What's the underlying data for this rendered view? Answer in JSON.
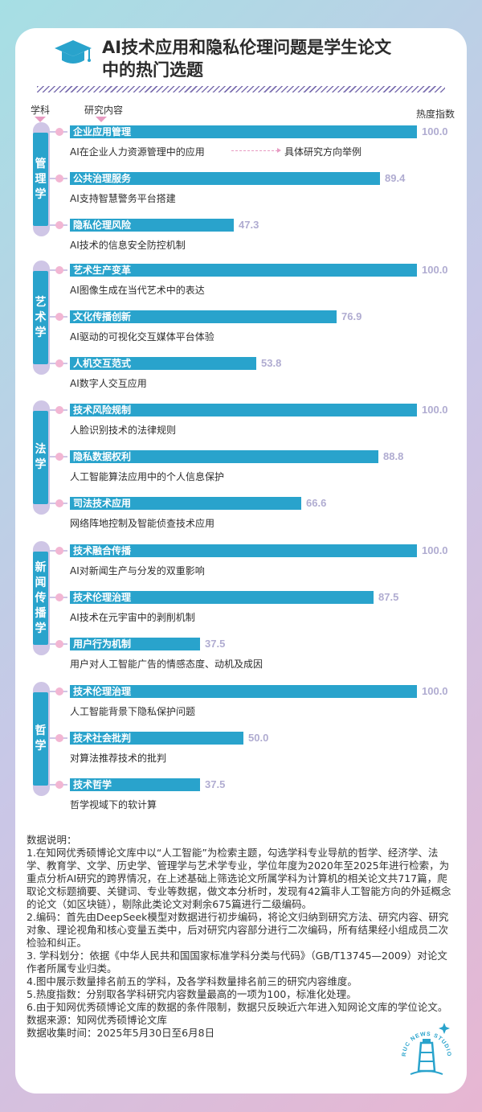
{
  "title_lines": [
    "AI技术应用和隐私伦理问题是学生论文",
    "中的热门选题"
  ],
  "headers": {
    "subject": "学科",
    "content": "研究内容",
    "heat": "热度指数"
  },
  "annotation": "具体研究方向举例",
  "chart_data": {
    "type": "bar",
    "orientation": "horizontal",
    "xlim": [
      0,
      100
    ],
    "groups": [
      {
        "subject": "管理学",
        "items": [
          {
            "topic": "企业应用管理",
            "value": 100.0,
            "value_label": "100.0",
            "example": "AI在企业人力资源管理中的应用"
          },
          {
            "topic": "公共治理服务",
            "value": 89.4,
            "value_label": "89.4",
            "example": "AI支持智慧警务平台搭建"
          },
          {
            "topic": "隐私伦理风险",
            "value": 47.3,
            "value_label": "47.3",
            "example": "AI技术的信息安全防控机制"
          }
        ]
      },
      {
        "subject": "艺术学",
        "items": [
          {
            "topic": "艺术生产变革",
            "value": 100.0,
            "value_label": "100.0",
            "example": "AI图像生成在当代艺术中的表达"
          },
          {
            "topic": "文化传播创新",
            "value": 76.9,
            "value_label": "76.9",
            "example": "AI驱动的可视化交互媒体平台体验"
          },
          {
            "topic": "人机交互范式",
            "value": 53.8,
            "value_label": "53.8",
            "example": "AI数字人交互应用"
          }
        ]
      },
      {
        "subject": "法学",
        "items": [
          {
            "topic": "技术风险规制",
            "value": 100.0,
            "value_label": "100.0",
            "example": "人脸识别技术的法律规则"
          },
          {
            "topic": "隐私数据权利",
            "value": 88.8,
            "value_label": "88.8",
            "example": "人工智能算法应用中的个人信息保护"
          },
          {
            "topic": "司法技术应用",
            "value": 66.6,
            "value_label": "66.6",
            "example": "网络阵地控制及智能侦查技术应用"
          }
        ]
      },
      {
        "subject": "新闻传播学",
        "items": [
          {
            "topic": "技术融合传播",
            "value": 100.0,
            "value_label": "100.0",
            "example": "AI对新闻生产与分发的双重影响"
          },
          {
            "topic": "技术伦理治理",
            "value": 87.5,
            "value_label": "87.5",
            "example": "AI技术在元宇宙中的剥削机制"
          },
          {
            "topic": "用户行为机制",
            "value": 37.5,
            "value_label": "37.5",
            "example": "用户对人工智能广告的情感态度、动机及成因"
          }
        ]
      },
      {
        "subject": "哲学",
        "items": [
          {
            "topic": "技术伦理治理",
            "value": 100.0,
            "value_label": "100.0",
            "example": "人工智能背景下隐私保护问题"
          },
          {
            "topic": "技术社会批判",
            "value": 50.0,
            "value_label": "50.0",
            "example": "对算法推荐技术的批判"
          },
          {
            "topic": "技术哲学",
            "value": 37.5,
            "value_label": "37.5",
            "example": "哲学视域下的软计算"
          }
        ]
      }
    ]
  },
  "notes": [
    "数据说明：",
    "1.在知网优秀硕博论文库中以“人工智能”为检索主题，勾选学科专业导航的哲学、经济学、法学、教育学、文学、历史学、管理学与艺术学专业，学位年度为2020年至2025年进行检索，为重点分析AI研究的跨界情况，在上述基础上筛选论文所属学科为计算机的相关论文共717篇，爬取论文标题摘要、关键词、专业等数据，做文本分析时，发现有42篇非人工智能方向的外延概念的论文（如区块链），剔除此类论文对剩余675篇进行二级编码。",
    "2.编码：首先由DeepSeek模型对数据进行初步编码，将论文归纳到研究方法、研究内容、研究对象、理论视角和核心变量五类中，后对研究内容部分进行二次编码，所有结果经小组成员二次检验和纠正。",
    "3. 学科划分：依据《中华人民共和国国家标准学科分类与代码》（GB/T13745—2009）对论文作者所属专业归类。",
    "4.图中展示数量排名前五的学科，及各学科数量排名前三的研究内容维度。",
    "5.热度指数：分别取各学科研究内容数量最高的一项为100，标准化处理。",
    "6.由于知网优秀硕博论文库的数据的条件限制，数据只反映近六年进入知网论文库的学位论文。",
    "数据来源：知网优秀硕博论文库",
    "数据收集时间：2025年5月30日至6月8日"
  ],
  "stamp_text": "RUC NEWS STUDIO",
  "colors": {
    "bar": "#29a3cc",
    "value": "#b0acd1",
    "dot": "#f2b6d3",
    "pill": "#cfc6e6"
  },
  "icons": [
    "graduation-cap-icon",
    "lighthouse-icon"
  ]
}
